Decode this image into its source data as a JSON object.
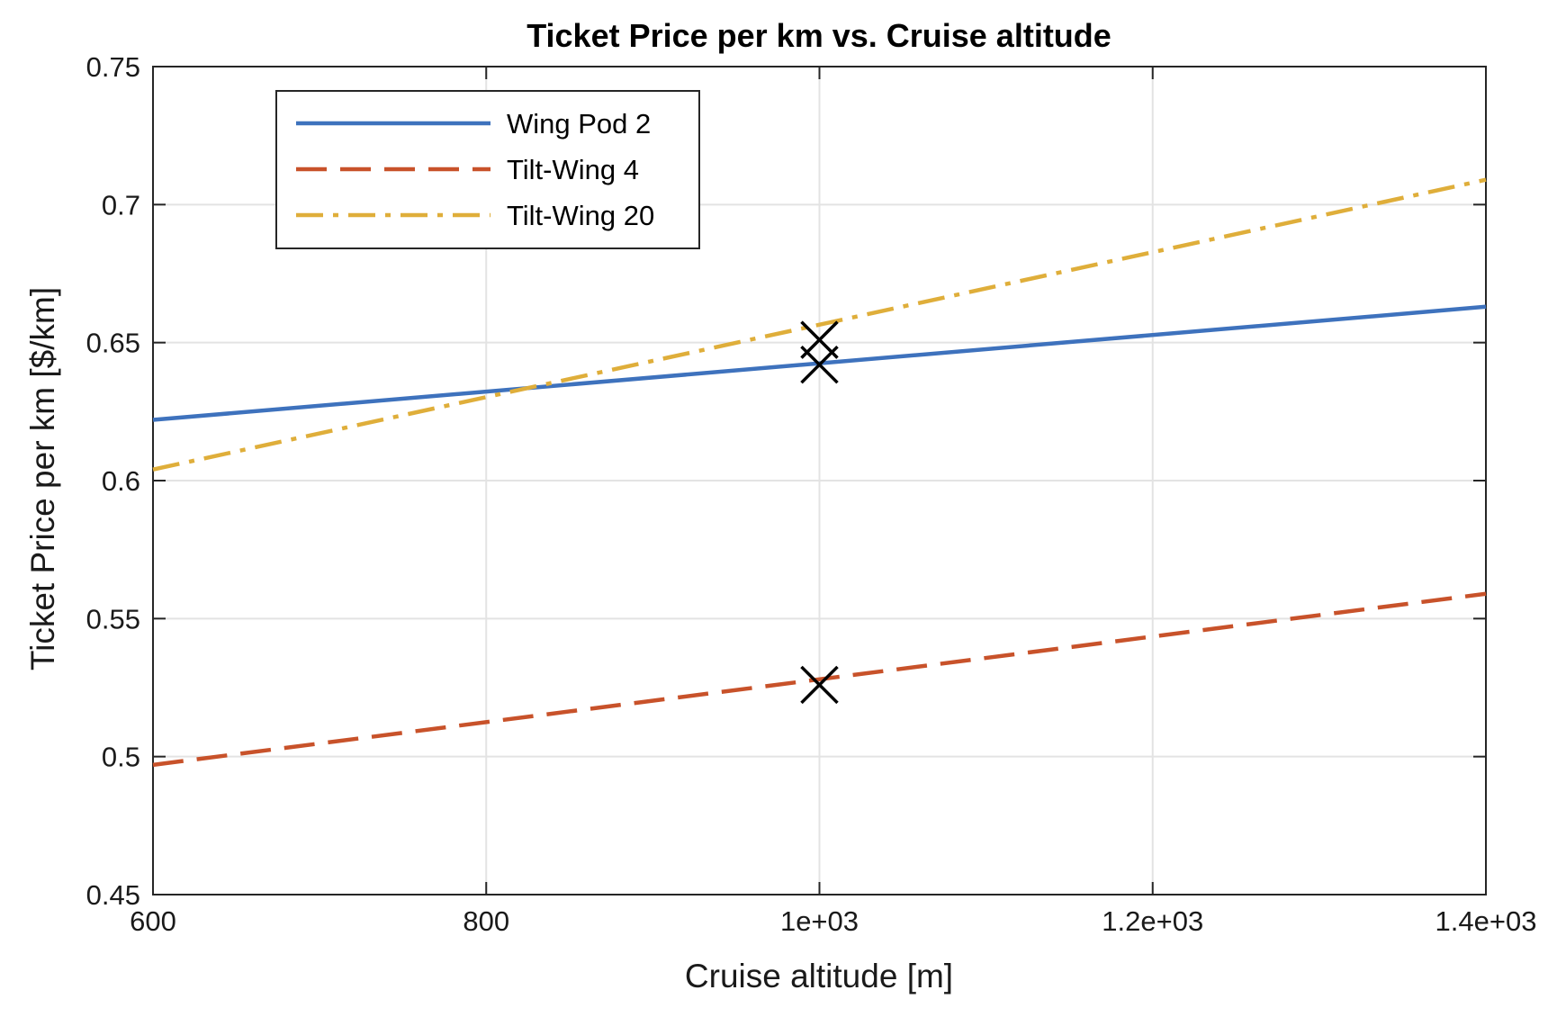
{
  "chart_data": {
    "type": "line",
    "title": "Ticket Price per km vs. Cruise altitude",
    "xlabel": "Cruise altitude [m]",
    "ylabel": "Ticket Price per km [$/km]",
    "xlim": [
      600,
      1400
    ],
    "ylim": [
      0.45,
      0.75
    ],
    "xticks": [
      600,
      800,
      1000,
      1200,
      1400
    ],
    "xtick_labels": [
      "600",
      "800",
      "1e+03",
      "1.2e+03",
      "1.4e+03"
    ],
    "yticks": [
      0.45,
      0.5,
      0.55,
      0.6,
      0.65,
      0.7,
      0.75
    ],
    "ytick_labels": [
      "0.45",
      "0.5",
      "0.55",
      "0.6",
      "0.65",
      "0.7",
      "0.75"
    ],
    "grid": true,
    "legend_position": "top-left",
    "series": [
      {
        "name": "Wing Pod 2",
        "color": "#3e72bd",
        "style": "solid",
        "x": [
          600,
          1400
        ],
        "y": [
          0.622,
          0.663
        ]
      },
      {
        "name": "Tilt-Wing 4",
        "color": "#c8522a",
        "style": "dashed",
        "x": [
          600,
          1400
        ],
        "y": [
          0.497,
          0.559
        ]
      },
      {
        "name": "Tilt-Wing 20",
        "color": "#dfae3a",
        "style": "dashdot",
        "x": [
          600,
          1400
        ],
        "y": [
          0.604,
          0.709
        ]
      }
    ],
    "markers": [
      {
        "x": 1000,
        "y": 0.651,
        "symbol": "x",
        "color": "#000000"
      },
      {
        "x": 1000,
        "y": 0.642,
        "symbol": "x",
        "color": "#000000"
      },
      {
        "x": 1000,
        "y": 0.526,
        "symbol": "x",
        "color": "#000000"
      }
    ]
  }
}
